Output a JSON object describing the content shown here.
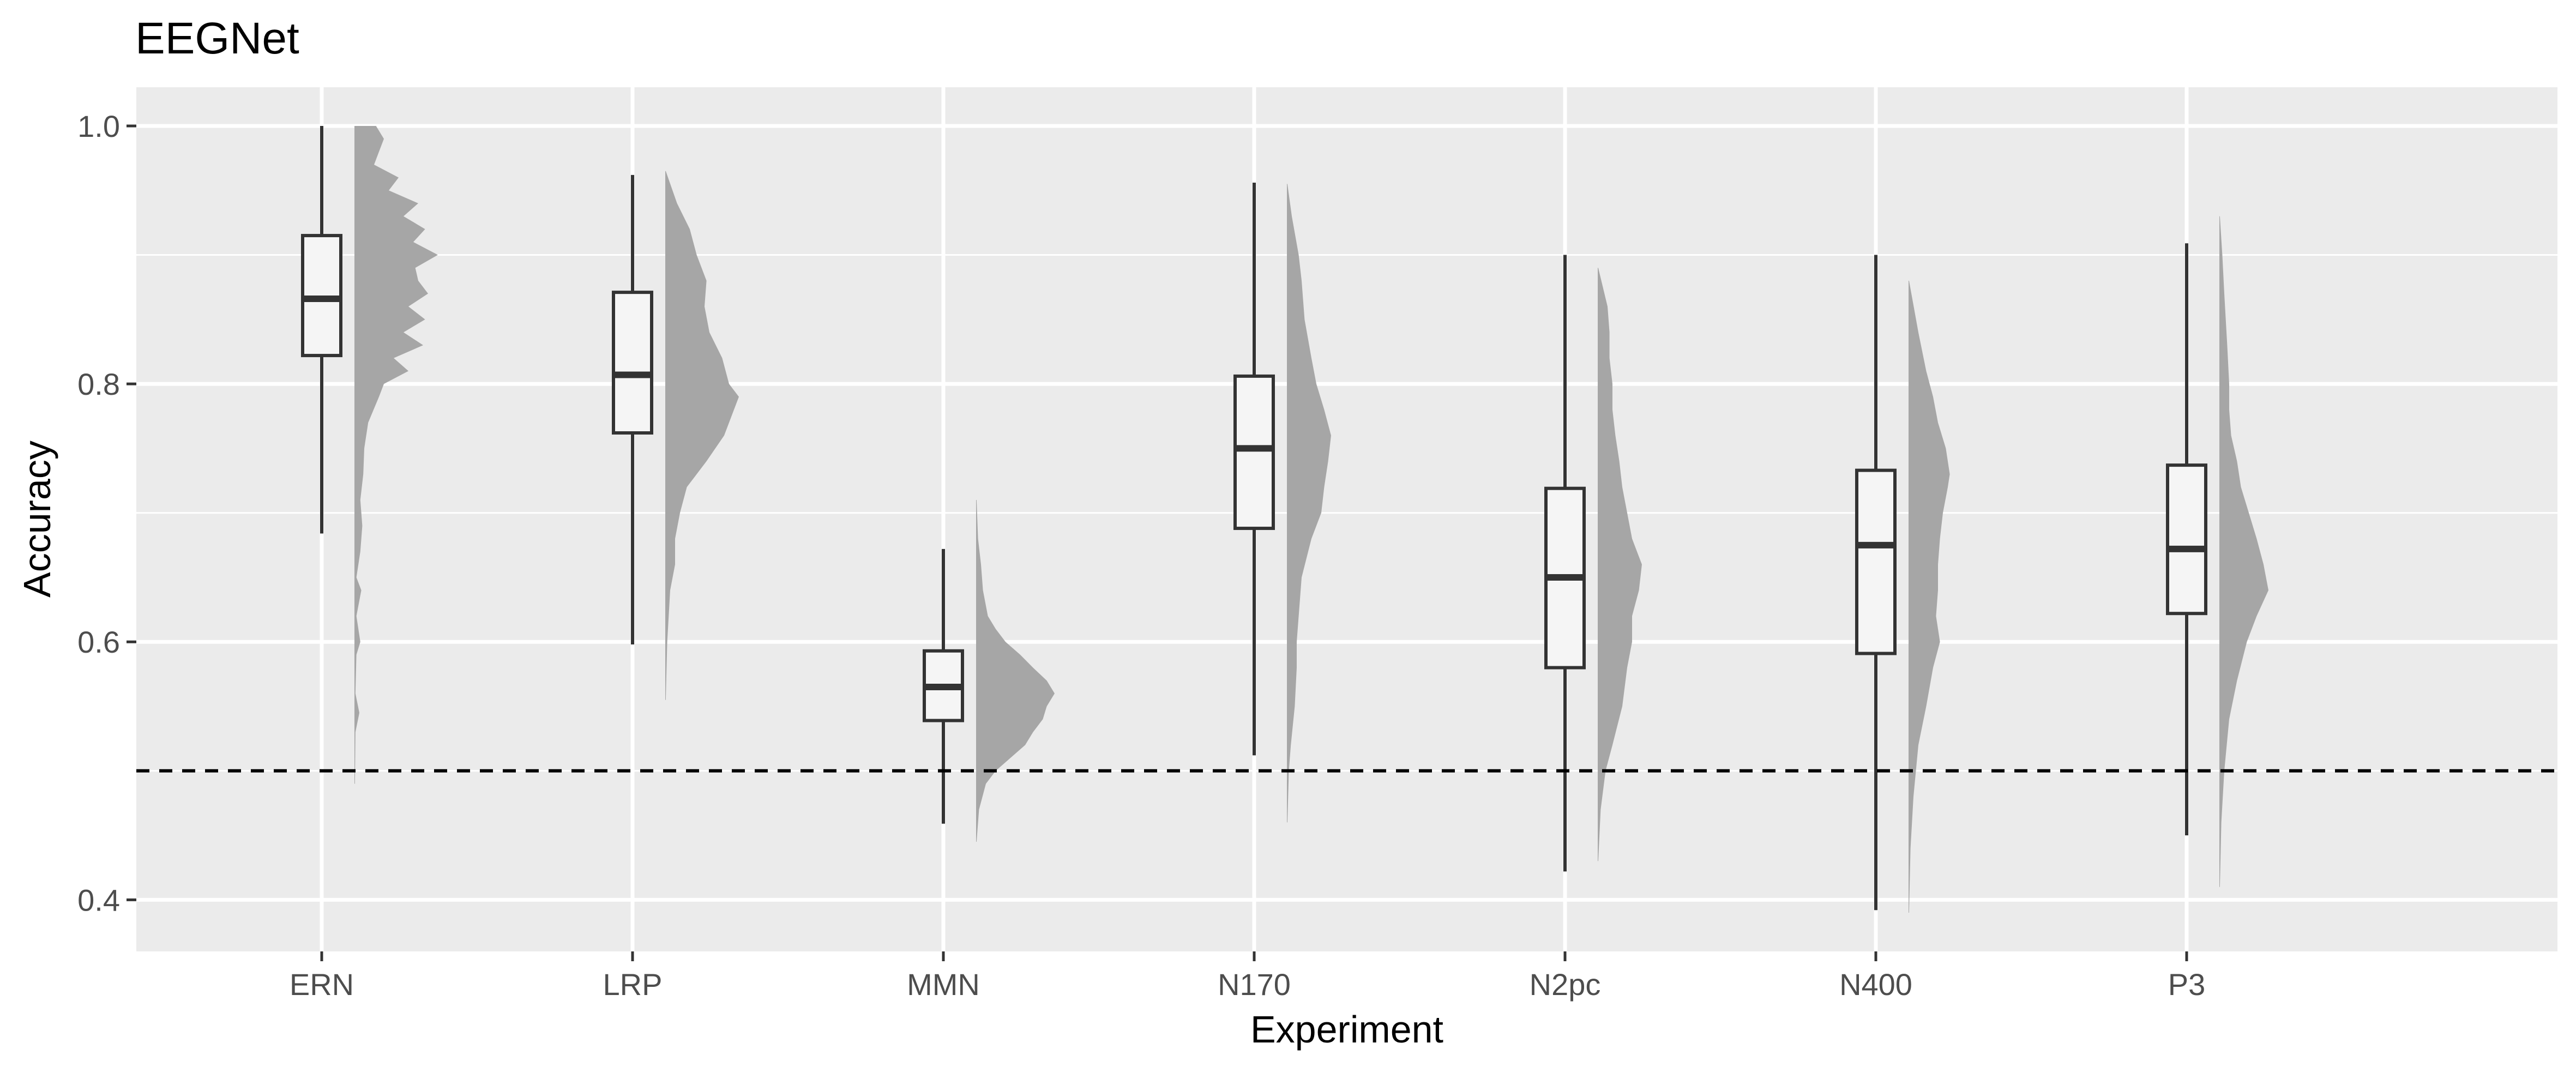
{
  "chart_data": {
    "type": "raincloud",
    "title": "EEGNet",
    "xlabel": "Experiment",
    "ylabel": "Accuracy",
    "ylim": [
      0.36,
      1.03
    ],
    "yticks": [
      "0.4",
      "0.6",
      "0.8",
      "1.0"
    ],
    "reference_line": {
      "y": 0.5,
      "style": "dashed"
    },
    "grid": true,
    "colors": {
      "panel": "#ebebeb",
      "grid": "#ffffff",
      "density": "#a6a6a6",
      "box_fill": "#f5f5f5",
      "box_stroke": "#333333"
    },
    "categories": [
      "ERN",
      "LRP",
      "MMN",
      "N170",
      "N2pc",
      "N400",
      "P3"
    ],
    "boxes": [
      {
        "category": "ERN",
        "min": 0.684,
        "q1": 0.822,
        "median": 0.866,
        "q3": 0.915,
        "max": 1.0
      },
      {
        "category": "LRP",
        "min": 0.598,
        "q1": 0.762,
        "median": 0.807,
        "q3": 0.871,
        "max": 0.962
      },
      {
        "category": "MMN",
        "min": 0.459,
        "q1": 0.539,
        "median": 0.565,
        "q3": 0.593,
        "max": 0.672
      },
      {
        "category": "N170",
        "min": 0.512,
        "q1": 0.688,
        "median": 0.75,
        "q3": 0.806,
        "max": 0.956
      },
      {
        "category": "N2pc",
        "min": 0.422,
        "q1": 0.58,
        "median": 0.65,
        "q3": 0.719,
        "max": 0.9
      },
      {
        "category": "N400",
        "min": 0.392,
        "q1": 0.591,
        "median": 0.675,
        "q3": 0.733,
        "max": 0.9
      },
      {
        "category": "P3",
        "min": 0.45,
        "q1": 0.622,
        "median": 0.672,
        "q3": 0.737,
        "max": 0.909
      }
    ],
    "densities": [
      {
        "category": "ERN",
        "points": [
          [
            0.49,
            0.005
          ],
          [
            0.53,
            0.01
          ],
          [
            0.545,
            0.05
          ],
          [
            0.56,
            0.01
          ],
          [
            0.59,
            0.02
          ],
          [
            0.6,
            0.06
          ],
          [
            0.62,
            0.02
          ],
          [
            0.64,
            0.07
          ],
          [
            0.65,
            0.02
          ],
          [
            0.67,
            0.06
          ],
          [
            0.69,
            0.08
          ],
          [
            0.71,
            0.06
          ],
          [
            0.73,
            0.09
          ],
          [
            0.75,
            0.1
          ],
          [
            0.77,
            0.14
          ],
          [
            0.79,
            0.25
          ],
          [
            0.8,
            0.3
          ],
          [
            0.81,
            0.55
          ],
          [
            0.82,
            0.4
          ],
          [
            0.83,
            0.7
          ],
          [
            0.84,
            0.5
          ],
          [
            0.85,
            0.72
          ],
          [
            0.86,
            0.55
          ],
          [
            0.87,
            0.75
          ],
          [
            0.88,
            0.65
          ],
          [
            0.89,
            0.62
          ],
          [
            0.9,
            0.85
          ],
          [
            0.91,
            0.6
          ],
          [
            0.92,
            0.72
          ],
          [
            0.93,
            0.5
          ],
          [
            0.94,
            0.65
          ],
          [
            0.95,
            0.35
          ],
          [
            0.96,
            0.45
          ],
          [
            0.97,
            0.2
          ],
          [
            0.98,
            0.25
          ],
          [
            0.99,
            0.3
          ],
          [
            1.0,
            0.22
          ]
        ]
      },
      {
        "category": "LRP",
        "points": [
          [
            0.555,
            0.005
          ],
          [
            0.6,
            0.02
          ],
          [
            0.64,
            0.05
          ],
          [
            0.66,
            0.1
          ],
          [
            0.68,
            0.1
          ],
          [
            0.7,
            0.15
          ],
          [
            0.72,
            0.22
          ],
          [
            0.74,
            0.42
          ],
          [
            0.76,
            0.6
          ],
          [
            0.78,
            0.7
          ],
          [
            0.79,
            0.75
          ],
          [
            0.8,
            0.65
          ],
          [
            0.82,
            0.58
          ],
          [
            0.84,
            0.45
          ],
          [
            0.86,
            0.4
          ],
          [
            0.88,
            0.42
          ],
          [
            0.9,
            0.32
          ],
          [
            0.92,
            0.25
          ],
          [
            0.94,
            0.12
          ],
          [
            0.965,
            0.005
          ]
        ]
      },
      {
        "category": "MMN",
        "points": [
          [
            0.445,
            0.005
          ],
          [
            0.47,
            0.03
          ],
          [
            0.49,
            0.1
          ],
          [
            0.5,
            0.2
          ],
          [
            0.51,
            0.35
          ],
          [
            0.52,
            0.5
          ],
          [
            0.53,
            0.58
          ],
          [
            0.54,
            0.68
          ],
          [
            0.55,
            0.72
          ],
          [
            0.56,
            0.8
          ],
          [
            0.57,
            0.72
          ],
          [
            0.58,
            0.58
          ],
          [
            0.59,
            0.45
          ],
          [
            0.6,
            0.3
          ],
          [
            0.61,
            0.2
          ],
          [
            0.62,
            0.12
          ],
          [
            0.64,
            0.07
          ],
          [
            0.66,
            0.05
          ],
          [
            0.68,
            0.02
          ],
          [
            0.71,
            0.005
          ]
        ]
      },
      {
        "category": "N170",
        "points": [
          [
            0.46,
            0.005
          ],
          [
            0.5,
            0.02
          ],
          [
            0.52,
            0.04
          ],
          [
            0.55,
            0.08
          ],
          [
            0.58,
            0.1
          ],
          [
            0.6,
            0.1
          ],
          [
            0.62,
            0.12
          ],
          [
            0.65,
            0.15
          ],
          [
            0.68,
            0.25
          ],
          [
            0.7,
            0.35
          ],
          [
            0.72,
            0.38
          ],
          [
            0.74,
            0.42
          ],
          [
            0.76,
            0.45
          ],
          [
            0.78,
            0.38
          ],
          [
            0.8,
            0.3
          ],
          [
            0.82,
            0.25
          ],
          [
            0.85,
            0.18
          ],
          [
            0.88,
            0.15
          ],
          [
            0.9,
            0.12
          ],
          [
            0.93,
            0.05
          ],
          [
            0.955,
            0.005
          ]
        ]
      },
      {
        "category": "N2pc",
        "points": [
          [
            0.43,
            0.005
          ],
          [
            0.47,
            0.03
          ],
          [
            0.5,
            0.08
          ],
          [
            0.52,
            0.15
          ],
          [
            0.55,
            0.25
          ],
          [
            0.58,
            0.3
          ],
          [
            0.6,
            0.35
          ],
          [
            0.62,
            0.35
          ],
          [
            0.64,
            0.42
          ],
          [
            0.66,
            0.45
          ],
          [
            0.68,
            0.35
          ],
          [
            0.7,
            0.3
          ],
          [
            0.72,
            0.25
          ],
          [
            0.74,
            0.22
          ],
          [
            0.76,
            0.18
          ],
          [
            0.78,
            0.15
          ],
          [
            0.8,
            0.15
          ],
          [
            0.82,
            0.12
          ],
          [
            0.84,
            0.12
          ],
          [
            0.86,
            0.1
          ],
          [
            0.89,
            0.005
          ]
        ]
      },
      {
        "category": "N400",
        "points": [
          [
            0.39,
            0.005
          ],
          [
            0.44,
            0.02
          ],
          [
            0.48,
            0.05
          ],
          [
            0.52,
            0.1
          ],
          [
            0.55,
            0.18
          ],
          [
            0.58,
            0.25
          ],
          [
            0.6,
            0.32
          ],
          [
            0.62,
            0.28
          ],
          [
            0.64,
            0.3
          ],
          [
            0.66,
            0.3
          ],
          [
            0.68,
            0.32
          ],
          [
            0.7,
            0.35
          ],
          [
            0.72,
            0.4
          ],
          [
            0.73,
            0.42
          ],
          [
            0.75,
            0.38
          ],
          [
            0.77,
            0.3
          ],
          [
            0.79,
            0.25
          ],
          [
            0.81,
            0.18
          ],
          [
            0.84,
            0.1
          ],
          [
            0.88,
            0.005
          ]
        ]
      },
      {
        "category": "P3",
        "points": [
          [
            0.41,
            0.005
          ],
          [
            0.46,
            0.02
          ],
          [
            0.5,
            0.05
          ],
          [
            0.54,
            0.1
          ],
          [
            0.57,
            0.18
          ],
          [
            0.6,
            0.28
          ],
          [
            0.62,
            0.38
          ],
          [
            0.64,
            0.5
          ],
          [
            0.66,
            0.45
          ],
          [
            0.68,
            0.38
          ],
          [
            0.7,
            0.3
          ],
          [
            0.72,
            0.22
          ],
          [
            0.74,
            0.18
          ],
          [
            0.76,
            0.12
          ],
          [
            0.78,
            0.1
          ],
          [
            0.8,
            0.1
          ],
          [
            0.83,
            0.08
          ],
          [
            0.87,
            0.05
          ],
          [
            0.9,
            0.03
          ],
          [
            0.93,
            0.005
          ]
        ]
      }
    ]
  }
}
